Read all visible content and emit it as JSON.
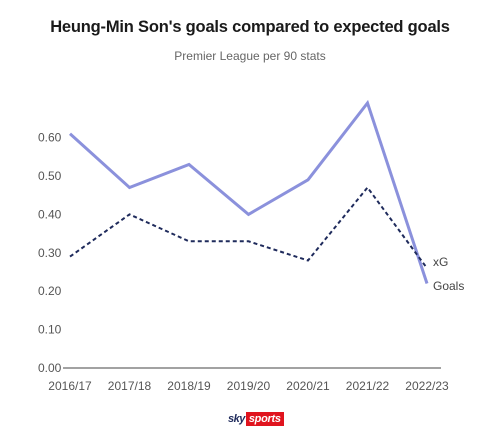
{
  "chart_data": {
    "type": "line",
    "title": "Heung-Min Son's goals compared to expected goals",
    "subtitle": "Premier League per 90 stats",
    "categories": [
      "2016/17",
      "2017/18",
      "2018/19",
      "2019/20",
      "2020/21",
      "2021/22",
      "2022/23"
    ],
    "y_ticks": [
      "0.00",
      "0.10",
      "0.20",
      "0.30",
      "0.40",
      "0.50",
      "0.60"
    ],
    "ylim": [
      0,
      0.7
    ],
    "grid": false,
    "series": [
      {
        "name": "Goals",
        "style": "solid",
        "color": "#8b91dc",
        "values": [
          0.61,
          0.47,
          0.53,
          0.4,
          0.49,
          0.69,
          0.22
        ]
      },
      {
        "name": "xG",
        "style": "dashed",
        "color": "#1f2b5c",
        "values": [
          0.29,
          0.4,
          0.33,
          0.33,
          0.28,
          0.47,
          0.26
        ]
      }
    ]
  },
  "branding": {
    "logo_sky": "sky",
    "logo_sports": "sports"
  }
}
